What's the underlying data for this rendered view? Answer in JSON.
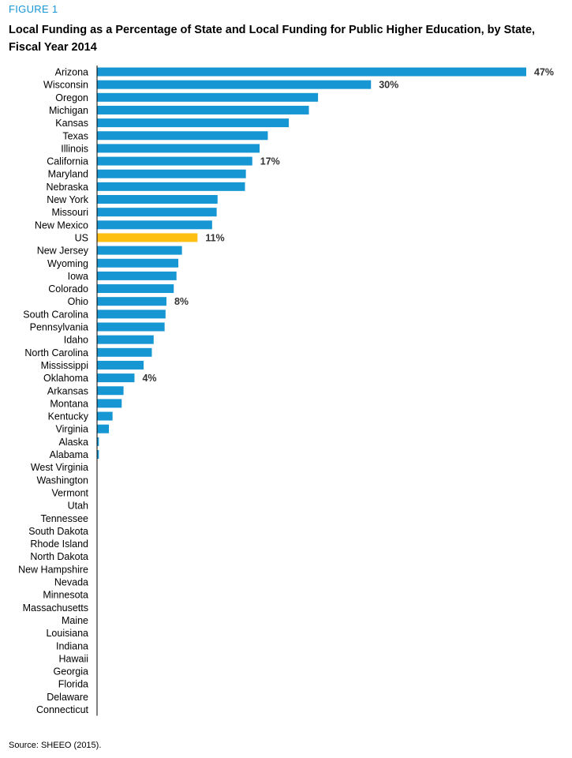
{
  "figure_label": "FIGURE 1",
  "source": "Source: SHEEO (2015).",
  "colors": {
    "bar": "#1696d2",
    "highlight": "#fdbf11",
    "axis": "#000000"
  },
  "chart_data": {
    "type": "bar",
    "orientation": "horizontal",
    "title": "Local Funding as a Percentage of State and Local Funding for Public Higher Education, by State, Fiscal Year 2014",
    "xlabel": "",
    "ylabel": "",
    "xlim": [
      0,
      47
    ],
    "grid": false,
    "highlight": "US",
    "categories": [
      "Arizona",
      "Wisconsin",
      "Oregon",
      "Michigan",
      "Kansas",
      "Texas",
      "Illinois",
      "California",
      "Maryland",
      "Nebraska",
      "New York",
      "Missouri",
      "New Mexico",
      "US",
      "New Jersey",
      "Wyoming",
      "Iowa",
      "Colorado",
      "Ohio",
      "South Carolina",
      "Pennsylvania",
      "Idaho",
      "North Carolina",
      "Mississippi",
      "Oklahoma",
      "Arkansas",
      "Montana",
      "Kentucky",
      "Virginia",
      "Alaska",
      "Alabama",
      "West Virginia",
      "Washington",
      "Vermont",
      "Utah",
      "Tennessee",
      "South Dakota",
      "Rhode Island",
      "North Dakota",
      "New Hampshire",
      "Nevada",
      "Minnesota",
      "Massachusetts",
      "Maine",
      "Louisiana",
      "Indiana",
      "Hawaii",
      "Georgia",
      "Florida",
      "Delaware",
      "Connecticut"
    ],
    "values": [
      47,
      30,
      24.2,
      23.2,
      21,
      18.7,
      17.8,
      17,
      16.3,
      16.2,
      13.2,
      13.1,
      12.6,
      11,
      9.3,
      8.9,
      8.7,
      8.4,
      7.6,
      7.5,
      7.4,
      6.2,
      6.0,
      5.1,
      4.1,
      2.9,
      2.7,
      1.7,
      1.3,
      0.2,
      0.2,
      0,
      0,
      0,
      0,
      0,
      0,
      0,
      0,
      0,
      0,
      0,
      0,
      0,
      0,
      0,
      0,
      0,
      0,
      0,
      0
    ],
    "data_labels": [
      {
        "category": "Arizona",
        "text": "47%"
      },
      {
        "category": "Wisconsin",
        "text": "30%"
      },
      {
        "category": "California",
        "text": "17%"
      },
      {
        "category": "US",
        "text": "11%"
      },
      {
        "category": "Ohio",
        "text": "8%"
      },
      {
        "category": "Oklahoma",
        "text": "4%"
      }
    ]
  }
}
